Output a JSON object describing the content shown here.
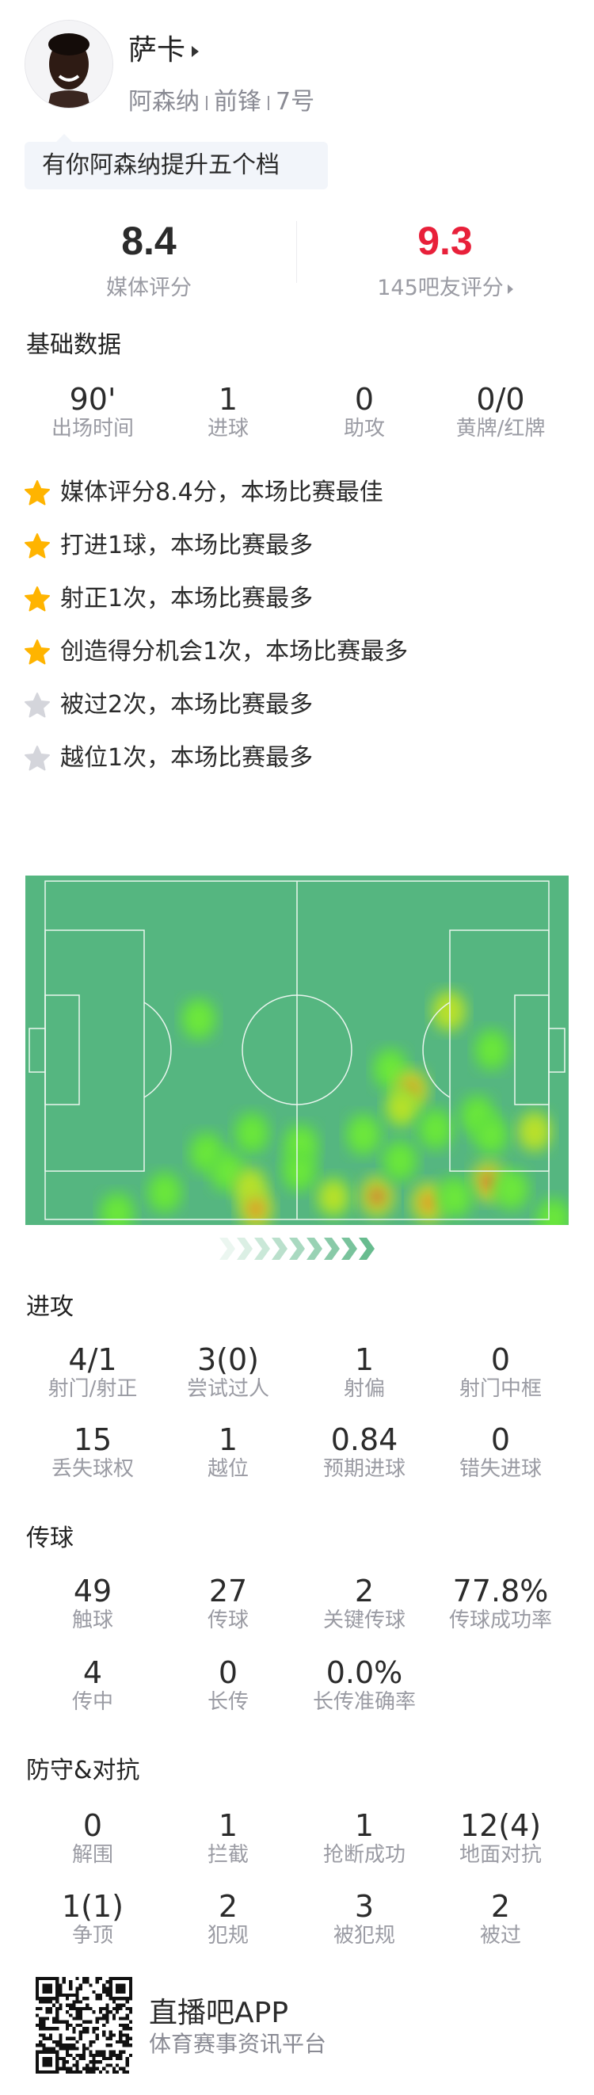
{
  "player": {
    "name": "萨卡",
    "team": "阿森纳",
    "position": "前锋",
    "number": "7号",
    "tagline": "有你阿森纳提升五个档"
  },
  "ratings": {
    "media_value": "8.4",
    "media_label": "媒体评分",
    "fan_value": "9.3",
    "fan_label": "145吧友评分",
    "fan_color": "#e8203a"
  },
  "basic": {
    "title": "基础数据",
    "stats": [
      {
        "value": "90'",
        "label": "出场时间"
      },
      {
        "value": "1",
        "label": "进球"
      },
      {
        "value": "0",
        "label": "助攻"
      },
      {
        "value": "0/0",
        "label": "黄牌/红牌"
      }
    ]
  },
  "highlights": [
    {
      "text": "媒体评分8.4分，本场比赛最佳",
      "star": "gold"
    },
    {
      "text": "打进1球，本场比赛最多",
      "star": "gold"
    },
    {
      "text": "射正1次，本场比赛最多",
      "star": "gold"
    },
    {
      "text": "创造得分机会1次，本场比赛最多",
      "star": "gold"
    },
    {
      "text": "被过2次，本场比赛最多",
      "star": "gray"
    },
    {
      "text": "越位1次，本场比赛最多",
      "star": "gray"
    }
  ],
  "colors": {
    "star_gold": "#ffb400",
    "star_gray": "#d4d5db",
    "pitch": "#55b680",
    "chevron": "#5bb686"
  },
  "attack": {
    "title": "进攻",
    "stats": [
      {
        "value": "4/1",
        "label": "射门/射正"
      },
      {
        "value": "3(0)",
        "label": "尝试过人"
      },
      {
        "value": "1",
        "label": "射偏"
      },
      {
        "value": "0",
        "label": "射门中框"
      },
      {
        "value": "15",
        "label": "丢失球权"
      },
      {
        "value": "1",
        "label": "越位"
      },
      {
        "value": "0.84",
        "label": "预期进球"
      },
      {
        "value": "0",
        "label": "错失进球"
      }
    ]
  },
  "passing": {
    "title": "传球",
    "stats": [
      {
        "value": "49",
        "label": "触球"
      },
      {
        "value": "27",
        "label": "传球"
      },
      {
        "value": "2",
        "label": "关键传球"
      },
      {
        "value": "77.8%",
        "label": "传球成功率"
      },
      {
        "value": "4",
        "label": "传中"
      },
      {
        "value": "0",
        "label": "长传"
      },
      {
        "value": "0.0%",
        "label": "长传准确率"
      }
    ]
  },
  "defense": {
    "title": "防守&对抗",
    "stats": [
      {
        "value": "0",
        "label": "解围"
      },
      {
        "value": "1",
        "label": "拦截"
      },
      {
        "value": "1",
        "label": "抢断成功"
      },
      {
        "value": "12(4)",
        "label": "地面对抗"
      },
      {
        "value": "1(1)",
        "label": "争顶"
      },
      {
        "value": "2",
        "label": "犯规"
      },
      {
        "value": "3",
        "label": "被犯规"
      },
      {
        "value": "2",
        "label": "被过"
      }
    ]
  },
  "footer": {
    "app_name": "直播吧APP",
    "app_desc": "体育赛事资讯平台"
  }
}
